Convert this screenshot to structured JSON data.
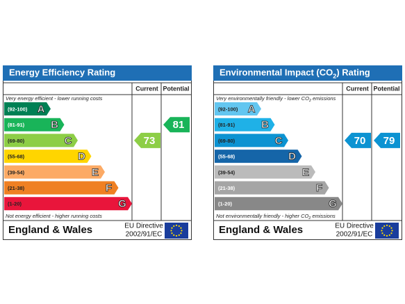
{
  "panels": [
    {
      "title": [
        "Energy Efficiency Rating"
      ],
      "columns": [
        "Current",
        "Potential"
      ],
      "top_note": [
        "Very energy efficient - lower running costs"
      ],
      "bottom_note": [
        "Not energy efficient - higher running costs"
      ],
      "bands": [
        {
          "range": "(92-100)",
          "letter": "A",
          "color": "#008054",
          "label_color": "#ffffff"
        },
        {
          "range": "(81-91)",
          "letter": "B",
          "color": "#19b459",
          "label_color": "#ffffff"
        },
        {
          "range": "(69-80)",
          "letter": "C",
          "color": "#8dce46",
          "label_color": "#222222"
        },
        {
          "range": "(55-68)",
          "letter": "D",
          "color": "#ffd500",
          "label_color": "#222222"
        },
        {
          "range": "(39-54)",
          "letter": "E",
          "color": "#fcaa65",
          "label_color": "#222222"
        },
        {
          "range": "(21-38)",
          "letter": "F",
          "color": "#ef8023",
          "label_color": "#222222"
        },
        {
          "range": "(1-20)",
          "letter": "G",
          "color": "#e9153b",
          "label_color": "#222222"
        }
      ],
      "current": 73,
      "potential": 81,
      "footer": {
        "region": "England & Wales",
        "directive": "EU Directive",
        "code": "2002/91/EC"
      }
    },
    {
      "title": [
        "Environmental Impact (CO",
        "2",
        ") Rating"
      ],
      "columns": [
        "Current",
        "Potential"
      ],
      "top_note": [
        "Very environmentally friendly - lower CO",
        "2",
        " emissions"
      ],
      "bottom_note": [
        "Not environmentally friendly - higher CO",
        "2",
        " emissions"
      ],
      "bands": [
        {
          "range": "(92-100)",
          "letter": "A",
          "color": "#63c6f0",
          "label_color": "#222222"
        },
        {
          "range": "(81-91)",
          "letter": "B",
          "color": "#1fb1e7",
          "label_color": "#222222"
        },
        {
          "range": "(69-80)",
          "letter": "C",
          "color": "#0c93d2",
          "label_color": "#222222"
        },
        {
          "range": "(55-68)",
          "letter": "D",
          "color": "#1565a8",
          "label_color": "#ffffff"
        },
        {
          "range": "(39-54)",
          "letter": "E",
          "color": "#bbbbbb",
          "label_color": "#222222"
        },
        {
          "range": "(21-38)",
          "letter": "F",
          "color": "#a5a5a5",
          "label_color": "#ffffff"
        },
        {
          "range": "(1-20)",
          "letter": "G",
          "color": "#888888",
          "label_color": "#ffffff"
        }
      ],
      "current": 70,
      "potential": 79,
      "footer": {
        "region": "England & Wales",
        "directive": "EU Directive",
        "code": "2002/91/EC"
      }
    }
  ]
}
